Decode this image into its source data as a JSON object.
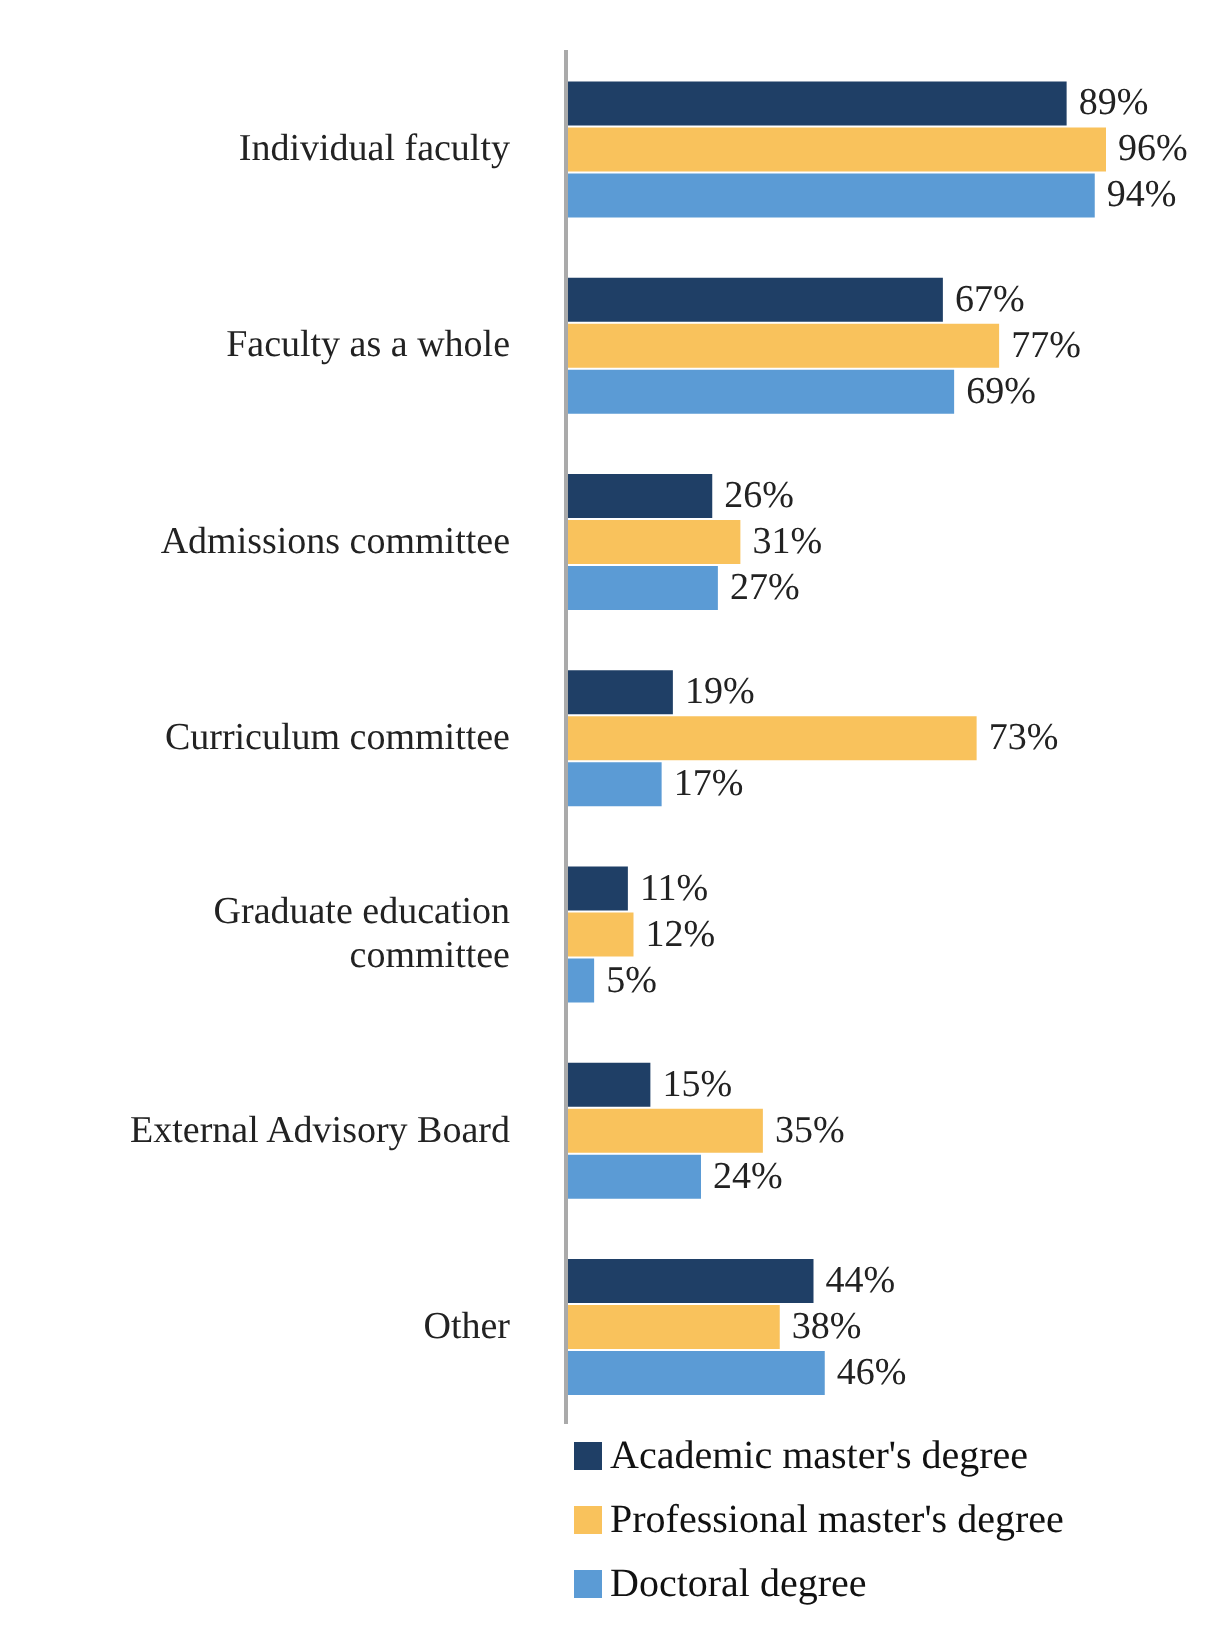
{
  "chart_data": {
    "type": "bar",
    "orientation": "horizontal",
    "categories": [
      "Individual faculty",
      "Faculty as a whole",
      "Admissions committee",
      "Curriculum committee",
      "Graduate education committee",
      "External Advisory Board",
      "Other"
    ],
    "series": [
      {
        "name": "Academic master's degree",
        "color": "#1f3f66",
        "values": [
          89,
          67,
          26,
          19,
          11,
          15,
          44
        ],
        "value_labels": [
          "89%",
          "67%",
          "26%",
          "19%",
          "11%",
          "15%",
          "44%"
        ]
      },
      {
        "name": "Professional master's degree",
        "color": "#f9c25c",
        "values": [
          96,
          77,
          31,
          73,
          12,
          35,
          38
        ],
        "value_labels": [
          "96%",
          "77%",
          "31%",
          "73%",
          "12%",
          "35%",
          "38%"
        ]
      },
      {
        "name": "Doctoral degree",
        "color": "#5b9bd5",
        "values": [
          94,
          69,
          27,
          17,
          5,
          24,
          46
        ],
        "value_labels": [
          "94%",
          "69%",
          "27%",
          "17%",
          "5%",
          "24%",
          "46%"
        ]
      }
    ],
    "tick_labels": "y",
    "legend": "bottom"
  }
}
